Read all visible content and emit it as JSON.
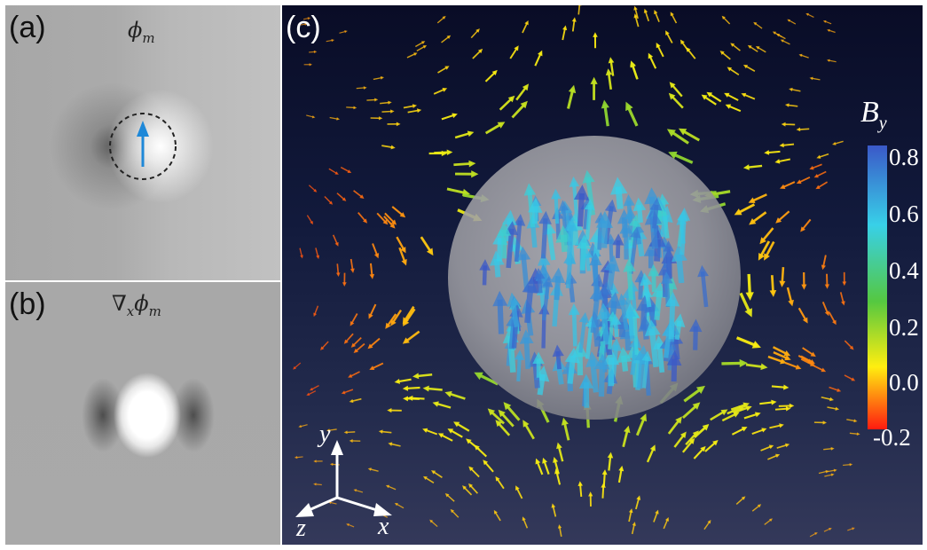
{
  "panel_a": {
    "tag": "(a)",
    "label_base": "ϕ",
    "label_sub": "m"
  },
  "panel_b": {
    "tag": "(b)",
    "label_base": "∇",
    "label_sub1": "x",
    "label_mid": "ϕ",
    "label_sub2": "m"
  },
  "panel_c": {
    "tag": "(c)",
    "colorbar": {
      "title_base": "B",
      "title_sub": "y",
      "ticks": [
        "0.8",
        "0.6",
        "0.4",
        "0.2",
        "0.0",
        "-0.2"
      ],
      "range": [
        -0.2,
        0.8
      ],
      "colors": [
        "#ff1a10",
        "#ffee10",
        "#55c840",
        "#38d0e8",
        "#3a58c8"
      ]
    },
    "axes": {
      "y": "y",
      "x": "x",
      "z": "z"
    },
    "sphere_color": "#9a9a9a",
    "dipole_arrow_color": "#1e88d8"
  }
}
